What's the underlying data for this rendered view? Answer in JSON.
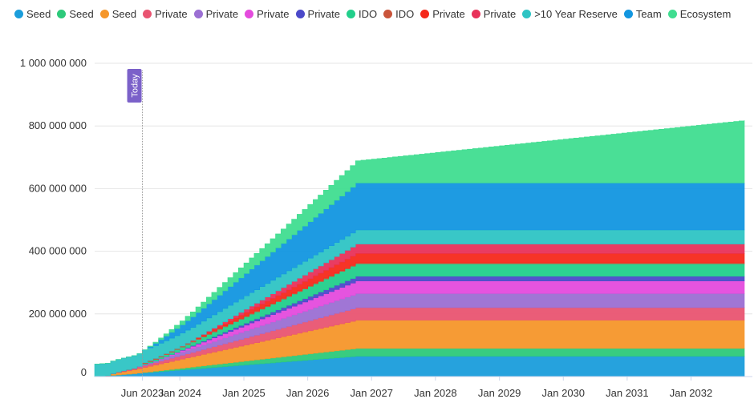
{
  "chart_data": {
    "type": "area",
    "stacked": true,
    "x_tick_labels": [
      "Jun 2023",
      "Jan 2024",
      "Jan 2025",
      "Jan 2026",
      "Jan 2027",
      "Jan 2028",
      "Jan 2029",
      "Jan 2030",
      "Jan 2031",
      "Jan 2032"
    ],
    "y_tick_labels": [
      "0",
      "200 000 000",
      "400 000 000",
      "600 000 000",
      "800 000 000",
      "1 000 000 000"
    ],
    "ylim": [
      0,
      1000000000
    ],
    "x_range": [
      "2022-09",
      "2032-11"
    ],
    "today_date": "2023-06",
    "today_label": "Today",
    "legend_position": "top-left",
    "series": [
      {
        "name": "Seed",
        "color": "#1a9ddb",
        "start": "2022-09",
        "end": "2026-10",
        "initial": 0,
        "total": 65000000
      },
      {
        "name": "Seed",
        "color": "#2dc97a",
        "start": "2023-04",
        "end": "2026-10",
        "initial": 0,
        "total": 25000000
      },
      {
        "name": "Seed",
        "color": "#f5962a",
        "start": "2022-12",
        "end": "2026-10",
        "initial": 5000000,
        "total": 90000000
      },
      {
        "name": "Private",
        "color": "#e95471",
        "start": "2023-01",
        "end": "2026-10",
        "initial": 2000000,
        "total": 40000000
      },
      {
        "name": "Private",
        "color": "#9b6fd3",
        "start": "2023-05",
        "end": "2026-10",
        "initial": 2000000,
        "total": 45000000
      },
      {
        "name": "Private",
        "color": "#e44bdd",
        "start": "2023-08",
        "end": "2026-10",
        "initial": 0,
        "total": 40000000
      },
      {
        "name": "Private",
        "color": "#4b49c9",
        "start": "2023-10",
        "end": "2026-10",
        "initial": 0,
        "total": 15000000
      },
      {
        "name": "IDO",
        "color": "#22cf8b",
        "start": "2023-06",
        "end": "2026-10",
        "initial": 3000000,
        "total": 40000000
      },
      {
        "name": "IDO",
        "color": "#c9543a",
        "start": "2023-06",
        "end": "2023-07",
        "initial": 3000000,
        "total": 3000000
      },
      {
        "name": "Private",
        "color": "#f5291b",
        "start": "2024-01",
        "end": "2026-10",
        "initial": 0,
        "total": 30000000
      },
      {
        "name": "Private",
        "color": "#e8325a",
        "start": "2024-03",
        "end": "2026-10",
        "initial": 0,
        "total": 30000000
      },
      {
        "name": ">10 Year Reserve",
        "color": "#2ec4c4",
        "start": "2022-09",
        "end": "2026-10",
        "initial": 40000000,
        "total": 45000000
      },
      {
        "name": "Team",
        "color": "#1296e0",
        "start": "2023-06",
        "end": "2026-10",
        "initial": 0,
        "total": 150000000
      },
      {
        "name": "Ecosystem",
        "color": "#40dd90",
        "start": "2023-06",
        "end": "2032-11",
        "initial": 0,
        "total": 200000000
      }
    ]
  }
}
